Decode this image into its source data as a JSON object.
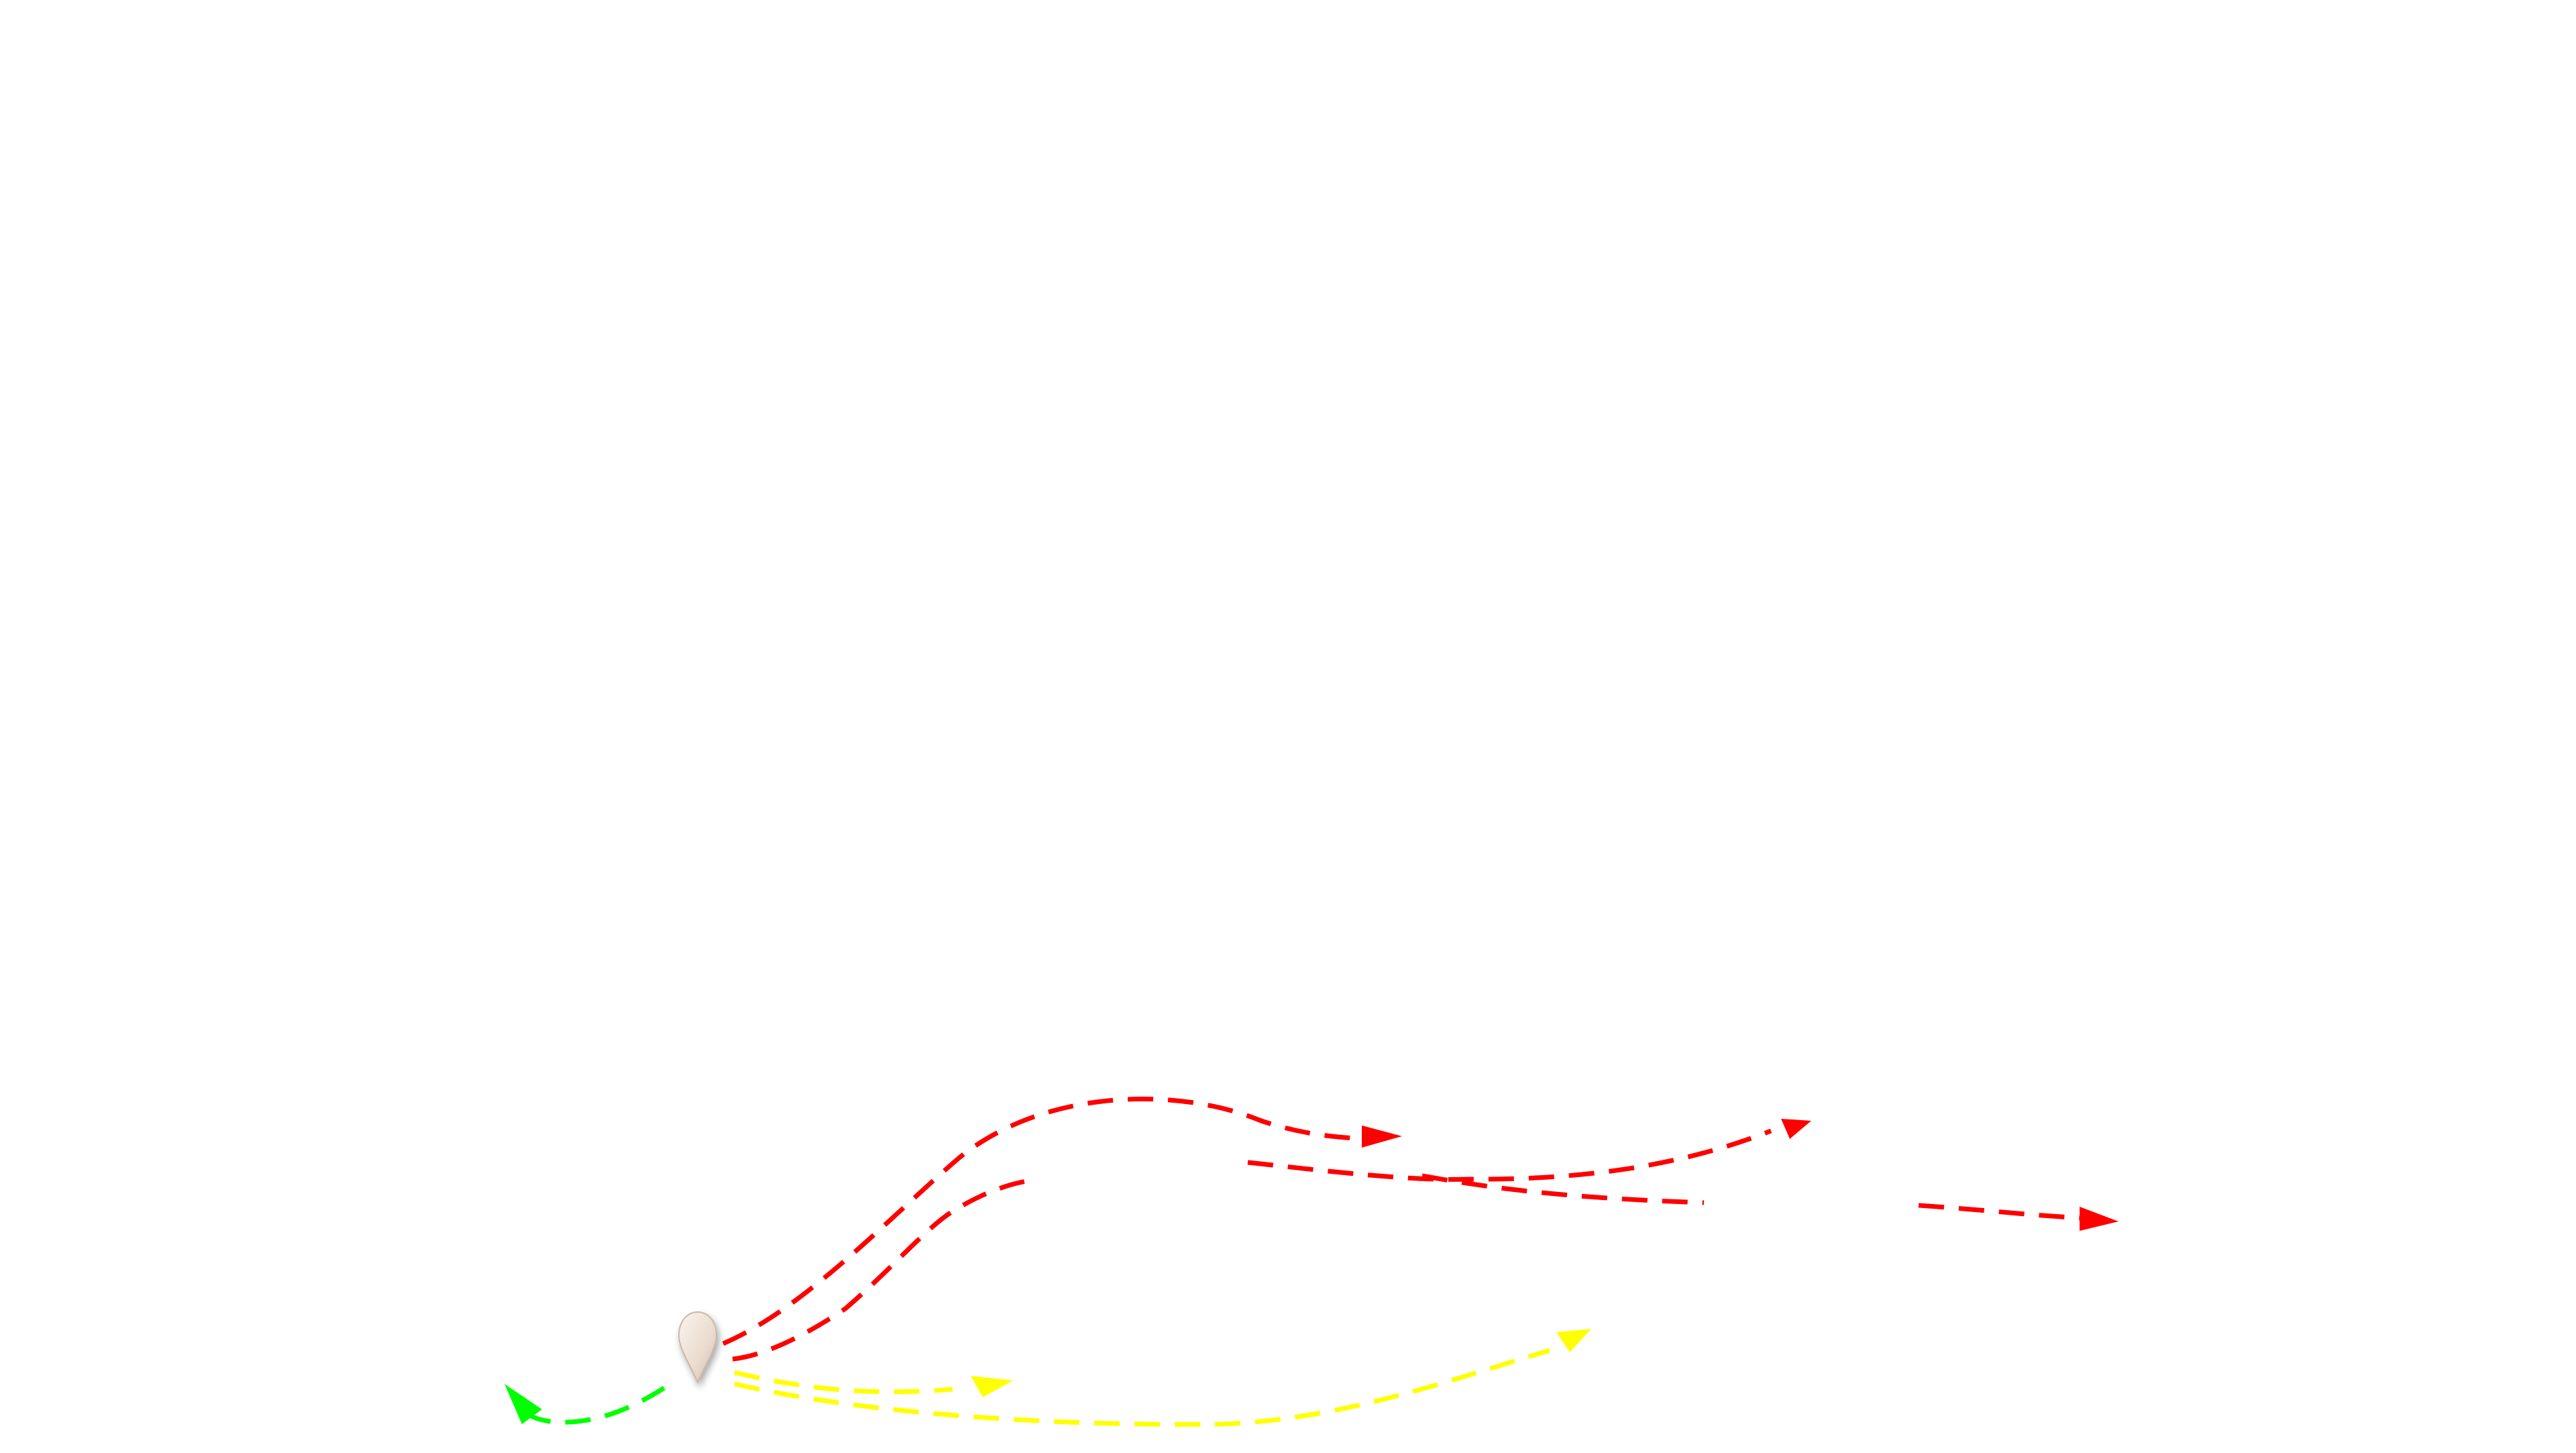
{
  "map": {
    "background": "#ffffff",
    "marker": {
      "icon": "map-pin-icon",
      "color": "#efe3d8"
    },
    "routes": [
      {
        "id": "red-route-upper-arc",
        "color": "#ff0000",
        "has_arrow": true
      },
      {
        "id": "red-route-lower-arc",
        "color": "#ff0000",
        "has_arrow": false
      },
      {
        "id": "red-route-middle-long",
        "color": "#ff0000",
        "has_arrow": true
      },
      {
        "id": "red-route-middle-short",
        "color": "#ff0000",
        "has_arrow": false
      },
      {
        "id": "red-route-far-right",
        "color": "#ff0000",
        "has_arrow": true
      },
      {
        "id": "yellow-route-short",
        "color": "#ffff00",
        "has_arrow": true
      },
      {
        "id": "yellow-route-long",
        "color": "#ffff00",
        "has_arrow": true
      },
      {
        "id": "green-route-left",
        "color": "#00ff00",
        "has_arrow": true
      }
    ]
  }
}
